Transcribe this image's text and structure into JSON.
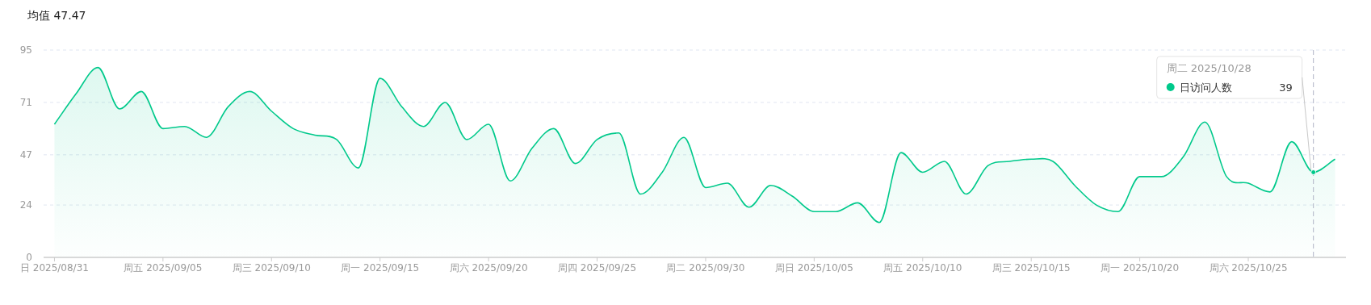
{
  "chart_data": {
    "type": "area",
    "title": "均值 47.47",
    "x": [
      "2025-08-31",
      "2025-09-01",
      "2025-09-02",
      "2025-09-03",
      "2025-09-04",
      "2025-09-05",
      "2025-09-06",
      "2025-09-07",
      "2025-09-08",
      "2025-09-09",
      "2025-09-10",
      "2025-09-11",
      "2025-09-12",
      "2025-09-13",
      "2025-09-14",
      "2025-09-15",
      "2025-09-16",
      "2025-09-17",
      "2025-09-18",
      "2025-09-19",
      "2025-09-20",
      "2025-09-21",
      "2025-09-22",
      "2025-09-23",
      "2025-09-24",
      "2025-09-25",
      "2025-09-26",
      "2025-09-27",
      "2025-09-28",
      "2025-09-29",
      "2025-09-30",
      "2025-10-01",
      "2025-10-02",
      "2025-10-03",
      "2025-10-04",
      "2025-10-05",
      "2025-10-06",
      "2025-10-07",
      "2025-10-08",
      "2025-10-09",
      "2025-10-10",
      "2025-10-11",
      "2025-10-12",
      "2025-10-13",
      "2025-10-14",
      "2025-10-15",
      "2025-10-16",
      "2025-10-17",
      "2025-10-18",
      "2025-10-19",
      "2025-10-20",
      "2025-10-21",
      "2025-10-22",
      "2025-10-23",
      "2025-10-24",
      "2025-10-25",
      "2025-10-26",
      "2025-10-27",
      "2025-10-28",
      "2025-10-29"
    ],
    "series": [
      {
        "name": "日访问人数",
        "color": "#00c98b",
        "values": [
          61,
          75,
          87,
          68,
          76,
          59,
          60,
          55,
          69,
          76,
          67,
          59,
          56,
          54,
          41,
          82,
          69,
          60,
          71,
          54,
          61,
          35,
          50,
          59,
          43,
          54,
          57,
          29,
          39,
          55,
          32,
          34,
          23,
          33,
          28,
          21,
          21,
          25,
          16,
          48,
          39,
          44,
          29,
          42,
          44,
          45,
          44,
          33,
          24,
          21,
          37,
          37,
          46,
          62,
          37,
          34,
          30,
          53,
          39,
          45
        ],
        "value_labels": [
          null,
          null,
          null,
          null,
          null,
          null,
          null,
          null,
          null,
          null,
          null,
          null,
          null,
          null,
          null,
          null,
          null,
          null,
          null,
          null,
          null,
          null,
          null,
          null,
          null,
          null,
          null,
          null,
          null,
          null,
          null,
          null,
          null,
          null,
          null,
          null,
          null,
          null,
          null,
          null,
          null,
          null,
          null,
          null,
          null,
          null,
          null,
          null,
          null,
          null,
          null,
          null,
          null,
          null,
          null,
          null,
          null,
          null,
          "39",
          null
        ]
      }
    ],
    "xlim": [
      "2025-08-30T12:00",
      "2025-10-29T12:00"
    ],
    "xticks": [
      {
        "value": "2025-08-31",
        "label": "日 2025/08/31"
      },
      {
        "value": "2025-09-05",
        "label": "周五 2025/09/05"
      },
      {
        "value": "2025-09-10",
        "label": "周三 2025/09/10"
      },
      {
        "value": "2025-09-15",
        "label": "周一 2025/09/15"
      },
      {
        "value": "2025-09-20",
        "label": "周六 2025/09/20"
      },
      {
        "value": "2025-09-25",
        "label": "周四 2025/09/25"
      },
      {
        "value": "2025-09-30",
        "label": "周二 2025/09/30"
      },
      {
        "value": "2025-10-05",
        "label": "周日 2025/10/05"
      },
      {
        "value": "2025-10-10",
        "label": "周五 2025/10/10"
      },
      {
        "value": "2025-10-15",
        "label": "周三 2025/10/15"
      },
      {
        "value": "2025-10-20",
        "label": "周一 2025/10/20"
      },
      {
        "value": "2025-10-25",
        "label": "周六 2025/10/25"
      }
    ],
    "ylim": [
      0,
      95
    ],
    "yticks": [
      0,
      24,
      47,
      71,
      95
    ],
    "grid": "y",
    "marker": "none",
    "ref_lines": [
      {
        "axis": "x",
        "value": "2025-10-28",
        "line_style": "dashed",
        "color": "#b0b3c6"
      }
    ],
    "annotations": [
      "周二 2025/10/28"
    ]
  }
}
